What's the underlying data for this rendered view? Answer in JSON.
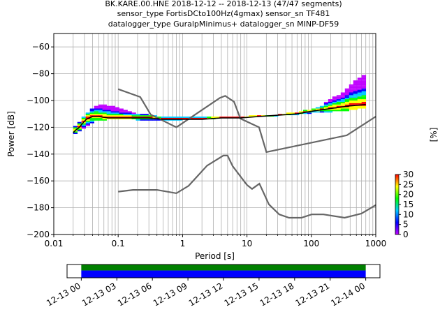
{
  "title": {
    "line1": "BK.KARE.00.HNE   2018-12-12 -- 2018-12-13  (47/47 segments)",
    "line2": "sensor_type FortisDCto100Hz(4gmax) sensor_sn TF481",
    "line3": "datalogger_type GuralpMinimus+ datalogger_sn MINP-DF59"
  },
  "colors": {
    "model_line": "#666666",
    "mean_line": "#000000",
    "coverage_green": "#008000",
    "coverage_blue": "#0000ff",
    "grid": "#b0b0b0"
  },
  "chart_data": [
    {
      "type": "heatmap",
      "subtype": "ppsd",
      "xlabel": "Period [s]",
      "ylabel": "Power [dB]",
      "xscale": "log",
      "xlim": [
        0.01,
        1000
      ],
      "ylim": [
        -200,
        -50
      ],
      "xticks": [
        0.01,
        0.1,
        1,
        10,
        100,
        1000
      ],
      "xtick_labels": [
        "0.01",
        "0.1",
        "1",
        "10",
        "100",
        "1000"
      ],
      "yticks": [
        -60,
        -80,
        -100,
        -120,
        -140,
        -160,
        -180,
        -200
      ],
      "ytick_labels": [
        "−60",
        "−80",
        "−100",
        "−120",
        "−140",
        "−160",
        "−180",
        "−200"
      ],
      "grid": true,
      "colorbar": {
        "label": "[%]",
        "ticks": [
          0,
          5,
          10,
          15,
          20,
          25,
          30
        ],
        "tick_labels": [
          "0",
          "5",
          "10",
          "15",
          "20",
          "25",
          "30"
        ],
        "range": [
          0,
          30
        ],
        "colormap": [
          "#ffffff",
          "#c000ff",
          "#0000ff",
          "#00c8ff",
          "#00ff00",
          "#ffff00",
          "#ff0000"
        ]
      },
      "mean_curve": {
        "x": [
          0.02,
          0.022,
          0.025,
          0.028,
          0.032,
          0.04,
          0.05,
          0.07,
          0.1,
          0.15,
          0.2,
          0.3,
          0.5,
          1,
          2,
          4,
          8,
          15,
          30,
          60,
          100,
          200,
          400,
          700
        ],
        "y": [
          -124,
          -122,
          -120,
          -117,
          -114,
          -112,
          -112,
          -113,
          -113,
          -113,
          -113,
          -113,
          -114,
          -114,
          -114,
          -113,
          -113,
          -112,
          -111,
          -110,
          -108,
          -106,
          -104,
          -103
        ]
      },
      "spread": {
        "x": [
          0.02,
          0.03,
          0.04,
          0.05,
          0.07,
          0.1,
          0.15,
          0.2,
          0.3,
          0.5,
          1,
          3,
          10,
          30,
          60,
          100,
          150,
          200,
          300,
          400,
          500,
          700
        ],
        "upper": [
          -121,
          -112,
          -106,
          -104,
          -104,
          -106,
          -108,
          -110,
          -111,
          -113,
          -113,
          -113,
          -112,
          -111,
          -109,
          -107,
          -104,
          -99,
          -95,
          -89,
          -85,
          -80
        ],
        "lower": [
          -126,
          -121,
          -117,
          -115,
          -115,
          -114,
          -114,
          -115,
          -115,
          -115,
          -115,
          -114,
          -113,
          -112,
          -111,
          -110,
          -109,
          -109,
          -108,
          -108,
          -107,
          -106
        ]
      },
      "noise_model_high": {
        "x": [
          0.1,
          0.22,
          0.32,
          0.8,
          3.8,
          4.6,
          6.3,
          7.9,
          15.4,
          20,
          354.8,
          1000
        ],
        "y": [
          -91.5,
          -97.4,
          -110.5,
          -120,
          -98,
          -96.5,
          -101,
          -113.5,
          -120,
          -138.5,
          -126,
          -112
        ]
      },
      "noise_model_low": {
        "x": [
          0.1,
          0.17,
          0.4,
          0.8,
          1.24,
          2.4,
          4.3,
          5,
          6,
          10,
          12,
          15.6,
          21.9,
          31.6,
          45,
          70,
          101,
          154,
          328,
          600,
          1000
        ],
        "y": [
          -168,
          -166.7,
          -166.7,
          -169.2,
          -163.7,
          -148.6,
          -141.1,
          -141.1,
          -149,
          -163,
          -166,
          -162.1,
          -177.5,
          -185,
          -187.5,
          -187.5,
          -185,
          -185,
          -187.5,
          -184.4,
          -178
        ]
      }
    },
    {
      "type": "timeline",
      "subtype": "data-coverage",
      "xtick_labels": [
        "12-13 00",
        "12-13 03",
        "12-13 06",
        "12-13 09",
        "12-13 12",
        "12-13 15",
        "12-13 18",
        "12-13 21",
        "12-14 00"
      ],
      "coverage_start_hours": 0,
      "coverage_end_hours": 24,
      "axis_range_hours": [
        -1.2,
        25.2
      ]
    }
  ]
}
